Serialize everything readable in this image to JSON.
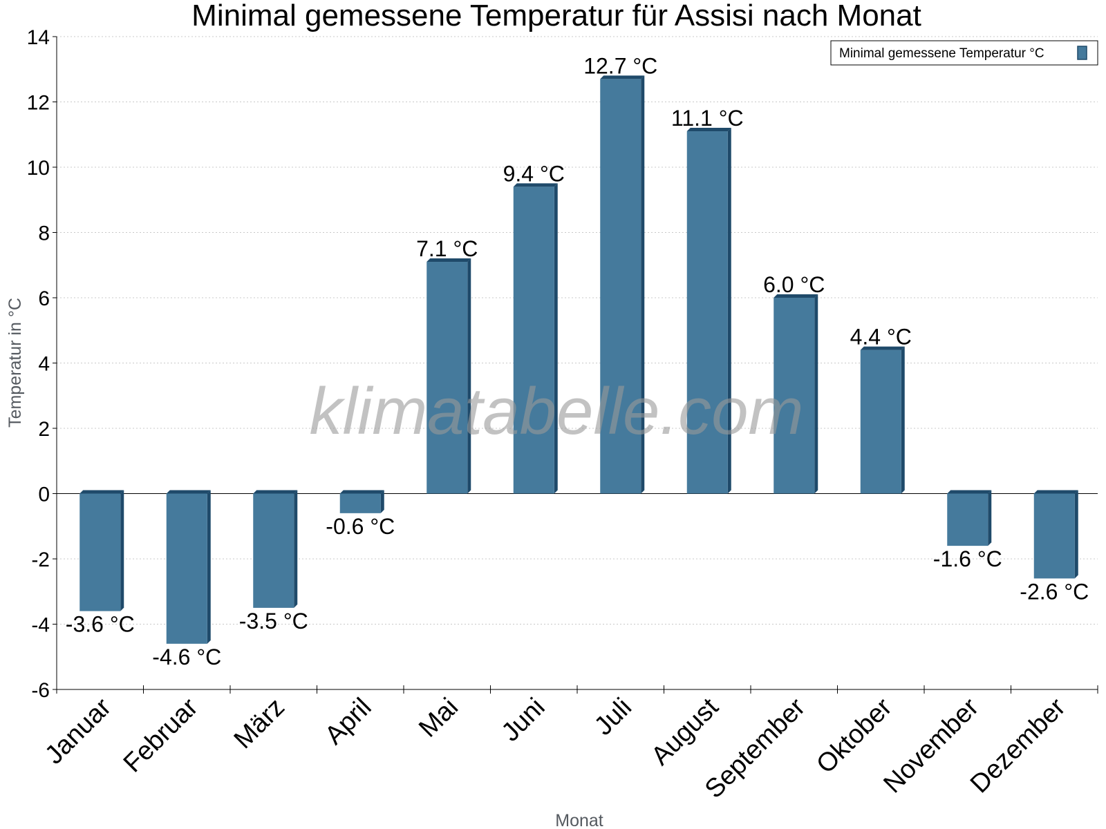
{
  "chart_data": {
    "type": "bar",
    "title": "Minimal gemessene Temperatur für Assisi nach Monat",
    "xlabel": "Monat",
    "ylabel": "Temperatur in °C",
    "ylim": [
      -6,
      14
    ],
    "yticks": [
      -6,
      -4,
      -2,
      0,
      2,
      4,
      6,
      8,
      10,
      12,
      14
    ],
    "grid": true,
    "legend_position": "top-right",
    "categories": [
      "Januar",
      "Februar",
      "März",
      "April",
      "Mai",
      "Juni",
      "Juli",
      "August",
      "September",
      "Oktober",
      "November",
      "Dezember"
    ],
    "series": [
      {
        "name": "Minimal gemessene Temperatur °C",
        "values": [
          -3.6,
          -4.6,
          -3.5,
          -0.6,
          7.1,
          9.4,
          12.7,
          11.1,
          6.0,
          4.4,
          -1.6,
          -2.6
        ],
        "labels": [
          "-3.6 °C",
          "-4.6 °C",
          "-3.5 °C",
          "-0.6 °C",
          "7.1 °C",
          "9.4 °C",
          "12.7 °C",
          "11.1 °C",
          "6.0 °C",
          "4.4 °C",
          "-1.6 °C",
          "-2.6 °C"
        ]
      }
    ],
    "colors": {
      "bar": "#457a9c",
      "bar_side": "#1f4a6a",
      "grid": "#c8c8c8",
      "axis": "#000000"
    }
  },
  "watermark": "klimatabelle.com"
}
